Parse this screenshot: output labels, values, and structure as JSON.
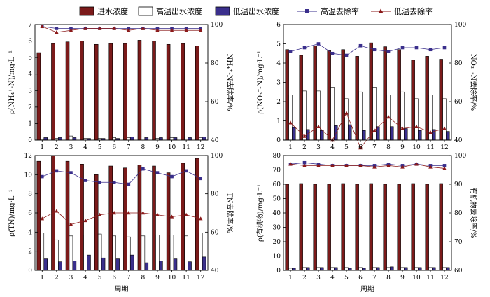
{
  "legend": {
    "influent": "进水浓度",
    "high_effluent": "高温出水浓度",
    "low_effluent": "低温出水浓度",
    "high_removal": "高温去除率",
    "low_removal": "低温去除率"
  },
  "colors": {
    "influent": "#7b1a1a",
    "high_effluent": "#ffffff",
    "low_effluent": "#3a2f8c",
    "high_removal": "#3a2f8c",
    "low_removal": "#8b1a1a"
  },
  "chart_data": [
    {
      "type": "bar",
      "categories": [
        "1",
        "2",
        "3",
        "4",
        "5",
        "6",
        "7",
        "8",
        "9",
        "10",
        "11",
        "12"
      ],
      "ylabel": "ρ(NH₄⁺-N)/mg·L⁻¹",
      "y2label": "NH₄⁺-N去除率/%",
      "xlabel": "",
      "ylim": [
        0,
        7
      ],
      "yticks": [
        0,
        1,
        2,
        3,
        4,
        5,
        6,
        7
      ],
      "y2lim": [
        40,
        100
      ],
      "y2ticks": [
        40,
        60,
        80,
        100
      ],
      "series": [
        {
          "name": "进水浓度",
          "values": [
            5.3,
            5.85,
            5.95,
            6.0,
            5.8,
            5.85,
            5.85,
            6.05,
            6.0,
            5.8,
            5.85,
            5.7
          ]
        },
        {
          "name": "高温出水浓度",
          "values": [
            0.05,
            0.1,
            0.25,
            0.1,
            0.1,
            0.15,
            0.15,
            0.2,
            0.1,
            0.15,
            0.2,
            0.15
          ]
        },
        {
          "name": "低温出水浓度",
          "values": [
            0.15,
            0.15,
            0.15,
            0.1,
            0.1,
            0.1,
            0.2,
            0.15,
            0.15,
            0.15,
            0.15,
            0.2
          ]
        }
      ],
      "removal": [
        {
          "name": "高温去除率",
          "values": [
            99,
            98,
            98,
            98,
            98,
            98,
            98,
            98,
            98,
            98,
            98,
            98
          ]
        },
        {
          "name": "低温去除率",
          "values": [
            99,
            96,
            97,
            98,
            98,
            98,
            97,
            98,
            97,
            97,
            97,
            97
          ]
        }
      ]
    },
    {
      "type": "bar",
      "categories": [
        "1",
        "2",
        "3",
        "4",
        "5",
        "6",
        "7",
        "8",
        "9",
        "10",
        "11",
        "12"
      ],
      "ylabel": "ρ(NO₃⁻-N)/mg·L⁻¹",
      "y2label": "NO₃⁻-N去除率/%",
      "xlabel": "",
      "ylim": [
        0,
        6
      ],
      "yticks": [
        0,
        1,
        2,
        3,
        4,
        5,
        6
      ],
      "y2lim": [
        40,
        100
      ],
      "y2ticks": [
        40,
        60,
        80,
        100
      ],
      "series": [
        {
          "name": "进水浓度",
          "values": [
            4.7,
            4.4,
            4.9,
            4.65,
            4.7,
            4.35,
            5.05,
            4.85,
            4.7,
            4.15,
            4.35,
            4.2
          ]
        },
        {
          "name": "高温出水浓度",
          "values": [
            2.35,
            2.55,
            2.55,
            2.75,
            2.15,
            2.5,
            2.75,
            2.35,
            2.5,
            2.15,
            2.35,
            2.15
          ]
        },
        {
          "name": "低温出水浓度",
          "values": [
            0.65,
            0.55,
            0.5,
            0.75,
            0.8,
            0.5,
            0.7,
            0.7,
            0.6,
            0.5,
            0.55,
            0.45
          ]
        }
      ],
      "removal": [
        {
          "name": "高温去除率",
          "values": [
            86,
            88,
            90,
            85,
            84,
            89,
            87,
            86,
            88,
            88,
            87,
            88
          ]
        },
        {
          "name": "低温去除率",
          "values": [
            49,
            42,
            47,
            40,
            54,
            36,
            45,
            52,
            46,
            47,
            44,
            46
          ]
        }
      ]
    },
    {
      "type": "bar",
      "categories": [
        "1",
        "2",
        "3",
        "4",
        "5",
        "6",
        "7",
        "8",
        "9",
        "10",
        "11",
        "12"
      ],
      "ylabel": "ρ(TN)/mg·L⁻¹",
      "y2label": "TN去除率/%",
      "xlabel": "周期",
      "ylim": [
        0,
        12
      ],
      "yticks": [
        0,
        2,
        4,
        6,
        8,
        10,
        12
      ],
      "y2lim": [
        40,
        100
      ],
      "y2ticks": [
        40,
        60,
        80,
        100
      ],
      "series": [
        {
          "name": "进水浓度",
          "values": [
            11.4,
            12.0,
            11.4,
            11.1,
            10.0,
            10.9,
            10.7,
            11.0,
            10.9,
            10.2,
            11.2,
            11.7
          ]
        },
        {
          "name": "高温出水浓度",
          "values": [
            3.9,
            3.2,
            3.6,
            3.7,
            3.8,
            3.6,
            3.5,
            3.6,
            3.7,
            3.7,
            3.6,
            3.9
          ]
        },
        {
          "name": "低温出水浓度",
          "values": [
            1.2,
            0.9,
            1.0,
            1.6,
            1.3,
            1.2,
            1.6,
            0.8,
            1.0,
            1.2,
            0.9,
            1.4
          ]
        }
      ],
      "removal": [
        {
          "name": "高温去除率",
          "values": [
            89,
            92,
            91,
            87,
            86,
            86,
            85,
            93,
            91,
            89,
            92,
            88
          ]
        },
        {
          "name": "低温去除率",
          "values": [
            67,
            71,
            64,
            66,
            69,
            70,
            70,
            70,
            69,
            68,
            69,
            67
          ]
        }
      ]
    },
    {
      "type": "bar",
      "categories": [
        "1",
        "2",
        "3",
        "4",
        "5",
        "6",
        "7",
        "8",
        "9",
        "10",
        "11",
        "12"
      ],
      "ylabel": "ρ(有机物)/mg·L⁻¹",
      "y2label": "有机物去除率/%",
      "xlabel": "周期",
      "ylim": [
        0,
        80
      ],
      "yticks": [
        0,
        10,
        20,
        30,
        40,
        50,
        60,
        70,
        80
      ],
      "y2lim": [
        60,
        100
      ],
      "y2ticks": [
        60,
        70,
        80,
        90,
        100
      ],
      "series": [
        {
          "name": "进水浓度",
          "values": [
            60,
            60.5,
            60,
            60,
            60.5,
            60,
            60.5,
            60,
            60,
            60.5,
            60,
            60.5
          ]
        },
        {
          "name": "高温出水浓度",
          "values": [
            1.5,
            2,
            2,
            2,
            2,
            2,
            2,
            2,
            2,
            2,
            2,
            2
          ]
        },
        {
          "name": "低温出水浓度",
          "values": [
            1.5,
            2,
            2,
            2,
            1.5,
            1.5,
            2,
            2.5,
            2,
            2,
            2,
            2
          ]
        }
      ],
      "removal": [
        {
          "name": "高温去除率",
          "values": [
            97,
            97.5,
            97,
            96.5,
            96.5,
            96.5,
            96.5,
            97,
            96.5,
            97,
            96.5,
            96.5
          ]
        },
        {
          "name": "低温去除率",
          "values": [
            97,
            96.5,
            96.5,
            96.5,
            96.5,
            96.5,
            96,
            96.5,
            96,
            97,
            96,
            95.5
          ]
        }
      ]
    }
  ]
}
